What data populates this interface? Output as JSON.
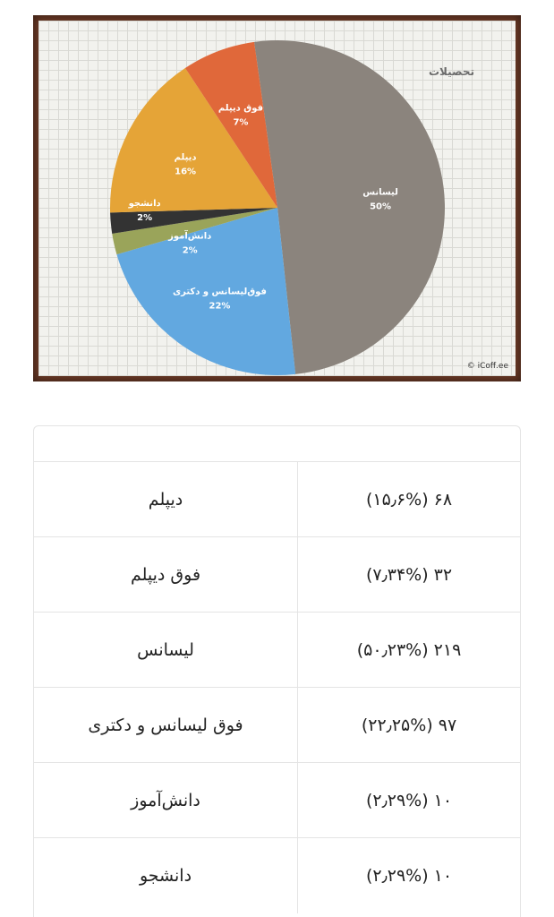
{
  "chart_data": {
    "type": "pie",
    "title": "تحصیلات",
    "credit": "© iCoff.ee",
    "slices": [
      {
        "label": "لیسانس",
        "percent_label": "50%",
        "value": 50,
        "color": "#8b847d"
      },
      {
        "label": "فوق‌لیسانس و دکتری",
        "percent_label": "22%",
        "value": 22,
        "color": "#62a8e0"
      },
      {
        "label": "دانش‌آموز",
        "percent_label": "2%",
        "value": 2,
        "color": "#9aa45a"
      },
      {
        "label": "دانشجو",
        "percent_label": "2%",
        "value": 2,
        "color": "#333333"
      },
      {
        "label": "دیپلم",
        "percent_label": "16%",
        "value": 16,
        "color": "#e5a437"
      },
      {
        "label": "فوق دیپلم",
        "percent_label": "7%",
        "value": 7,
        "color": "#e0683a"
      }
    ]
  },
  "table": {
    "rows": [
      {
        "label": "دیپلم",
        "value": "۶۸ (۱۵٫۶%)"
      },
      {
        "label": "فوق دیپلم",
        "value": "۳۲ (۷٫۳۴%)"
      },
      {
        "label": "لیسانس",
        "value": "۲۱۹ (۵۰٫۲۳%)"
      },
      {
        "label": "فوق لیسانس و دکتری",
        "value": "۹۷ (۲۲٫۲۵%)"
      },
      {
        "label": "دانش‌آموز",
        "value": "۱۰ (۲٫۲۹%)"
      },
      {
        "label": "دانشجو",
        "value": "۱۰ (۲٫۲۹%)"
      }
    ]
  }
}
